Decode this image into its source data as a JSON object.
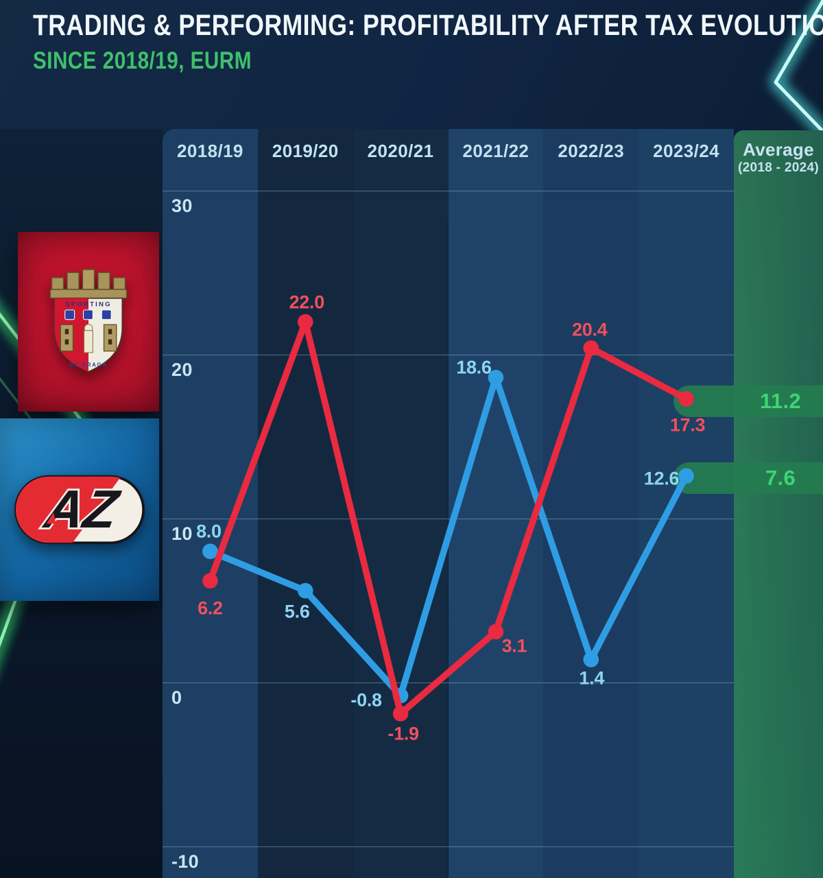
{
  "header": {
    "title": "TRADING & PERFORMING: PROFITABILITY AFTER TAX EVOLUTION",
    "subtitle": "SINCE 2018/19, EURM"
  },
  "teams": [
    {
      "name": "SC Braga",
      "crest_text_top": "SPORTING",
      "crest_text_bottom": "DE BRAGA"
    },
    {
      "name": "AZ Alkmaar",
      "logo_text": "AZ"
    }
  ],
  "chart_data": {
    "type": "line",
    "title": "TRADING & PERFORMING: PROFITABILITY AFTER TAX EVOLUTION",
    "subtitle": "SINCE 2018/19, EURM",
    "unit": "EURM",
    "categories": [
      "2018/19",
      "2019/20",
      "2020/21",
      "2021/22",
      "2022/23",
      "2023/24"
    ],
    "series": [
      {
        "name": "SC Braga",
        "color": "#e92a40",
        "label_color": "#f44f5d",
        "values": [
          6.2,
          22.0,
          -1.9,
          3.1,
          20.4,
          17.3
        ],
        "value_labels": [
          "6.2",
          "22.0",
          "-1.9",
          "3.1",
          "20.4",
          "17.3"
        ],
        "average": 11.2,
        "average_label": "11.2"
      },
      {
        "name": "AZ Alkmaar",
        "color": "#2f9de4",
        "label_color": "#8fd4f4",
        "values": [
          8.0,
          5.6,
          -0.8,
          18.6,
          1.4,
          12.6
        ],
        "value_labels": [
          "8.0",
          "5.6",
          "-0.8",
          "18.6",
          "1.4",
          "12.6"
        ],
        "average": 7.6,
        "average_label": "7.6"
      }
    ],
    "average_column": {
      "line1": "Average",
      "line2": "(2018 - 2024)"
    },
    "y_ticks": [
      "30",
      "20",
      "10",
      "0",
      "-10"
    ],
    "ylim": [
      -13,
      34
    ],
    "grid": true,
    "legend_position": "left-logos"
  },
  "colors": {
    "background": "#0f2440",
    "title_text": "#f0f7fa",
    "subtitle_green": "#3ec06c",
    "axis_text": "#c9e6f2",
    "header_text": "#c2e2ef",
    "grid_line": "#a4cde0",
    "pill_green": "#247c4f",
    "average_value_green": "#3fd475",
    "braga_red": "#e92a40",
    "az_blue": "#2f9de4",
    "neon_green": "#49e07c",
    "neon_cyan": "#86f2ef"
  }
}
